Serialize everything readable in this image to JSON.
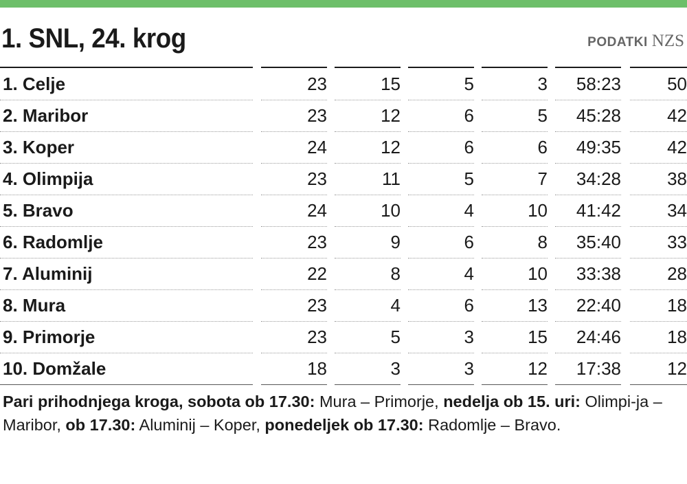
{
  "colors": {
    "accent": "#6dbf6a"
  },
  "header": {
    "title": "1. SNL, 24. krog",
    "source_label": "PODATKI",
    "source_name": "NZS"
  },
  "table": {
    "rows": [
      {
        "team": "1. Celje",
        "played": "23",
        "won": "15",
        "draw": "5",
        "lost": "3",
        "goals": "58:23",
        "points": "50"
      },
      {
        "team": "2. Maribor",
        "played": "23",
        "won": "12",
        "draw": "6",
        "lost": "5",
        "goals": "45:28",
        "points": "42"
      },
      {
        "team": "3. Koper",
        "played": "24",
        "won": "12",
        "draw": "6",
        "lost": "6",
        "goals": "49:35",
        "points": "42"
      },
      {
        "team": "4. Olimpija",
        "played": "23",
        "won": "11",
        "draw": "5",
        "lost": "7",
        "goals": "34:28",
        "points": "38"
      },
      {
        "team": "5. Bravo",
        "played": "24",
        "won": "10",
        "draw": "4",
        "lost": "10",
        "goals": "41:42",
        "points": "34"
      },
      {
        "team": "6. Radomlje",
        "played": "23",
        "won": "9",
        "draw": "6",
        "lost": "8",
        "goals": "35:40",
        "points": "33"
      },
      {
        "team": "7. Aluminij",
        "played": "22",
        "won": "8",
        "draw": "4",
        "lost": "10",
        "goals": "33:38",
        "points": "28"
      },
      {
        "team": "8. Mura",
        "played": "23",
        "won": "4",
        "draw": "6",
        "lost": "13",
        "goals": "22:40",
        "points": "18"
      },
      {
        "team": "9. Primorje",
        "played": "23",
        "won": "5",
        "draw": "3",
        "lost": "15",
        "goals": "24:46",
        "points": "18"
      },
      {
        "team": "10. Domžale",
        "played": "18",
        "won": "3",
        "draw": "3",
        "lost": "12",
        "goals": "17:38",
        "points": "12"
      }
    ]
  },
  "note": [
    {
      "text": "Pari prihodnjega kroga, sobota ob 17.30:",
      "bold": true
    },
    {
      "text": " Mura – Primorje, ",
      "bold": false
    },
    {
      "text": "nedelja ob 15. uri:",
      "bold": true
    },
    {
      "text": " Olimpi-ja – Maribor, ",
      "bold": false
    },
    {
      "text": "ob 17.30:",
      "bold": true
    },
    {
      "text": " Aluminij – Koper, ",
      "bold": false
    },
    {
      "text": "ponedeljek ob 17.30:",
      "bold": true
    },
    {
      "text": " Radomlje – Bravo.",
      "bold": false
    }
  ]
}
